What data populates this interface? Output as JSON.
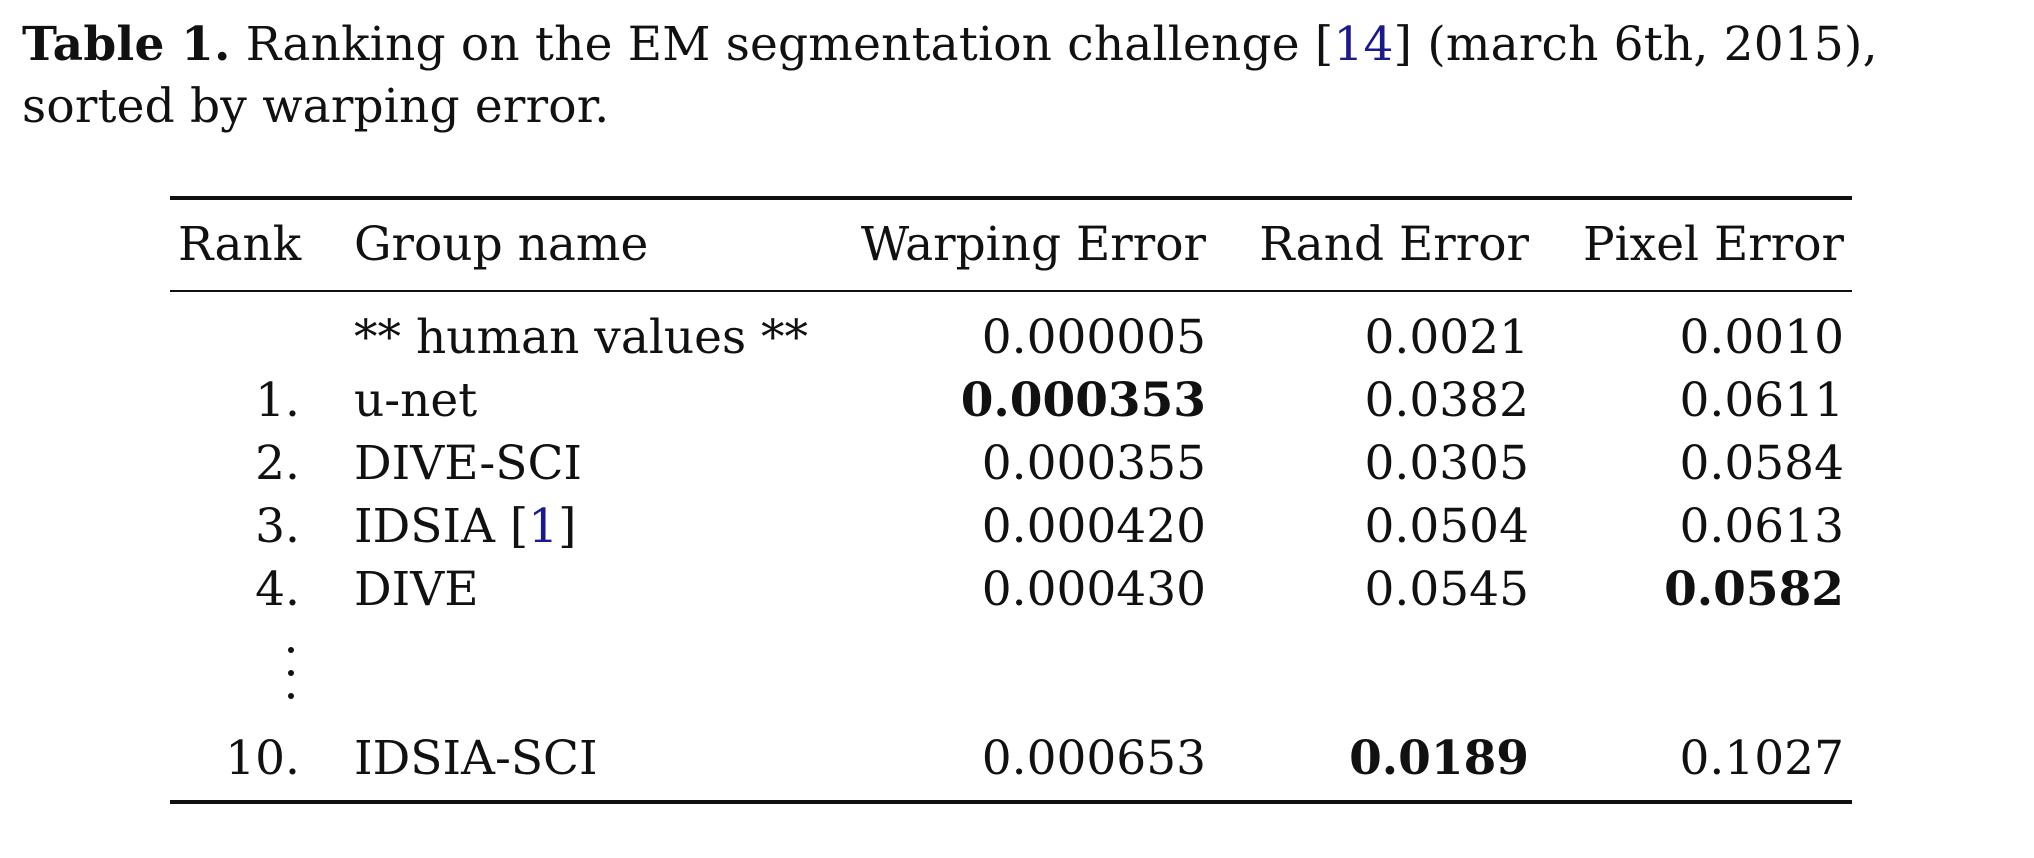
{
  "caption": {
    "label": "Table 1.",
    "text_before": " Ranking on the EM segmentation challenge ",
    "cite_open": "[",
    "cite_num": "14",
    "cite_close": "]",
    "text_after": " (march 6th, 2015), sorted by warping error."
  },
  "table": {
    "headers": {
      "rank": "Rank",
      "group": "Group name",
      "warping": "Warping Error",
      "rand": "Rand Error",
      "pixel": "Pixel Error"
    },
    "rows": [
      {
        "rank": "",
        "group": "** human values **",
        "warping": "0.000005",
        "rand": "0.0021",
        "pixel": "0.0010"
      },
      {
        "rank": "1.",
        "group": "u-net",
        "warping": "0.000353",
        "rand": "0.0382",
        "pixel": "0.0611"
      },
      {
        "rank": "2.",
        "group": "DIVE-SCI",
        "warping": "0.000355",
        "rand": "0.0305",
        "pixel": "0.0584"
      },
      {
        "rank": "3.",
        "group_name": "IDSIA ",
        "group_cite": "1",
        "warping": "0.000420",
        "rand": "0.0504",
        "pixel": "0.0613"
      },
      {
        "rank": "4.",
        "group": "DIVE",
        "warping": "0.000430",
        "rand": "0.0545",
        "pixel": "0.0582"
      },
      {
        "rank": "10.",
        "group": "IDSIA-SCI",
        "warping": "0.000653",
        "rand": "0.0189",
        "pixel": "0.1027"
      }
    ],
    "bold_cells": [
      "rows.1.warping",
      "rows.4.pixel",
      "rows.5.rand"
    ]
  }
}
